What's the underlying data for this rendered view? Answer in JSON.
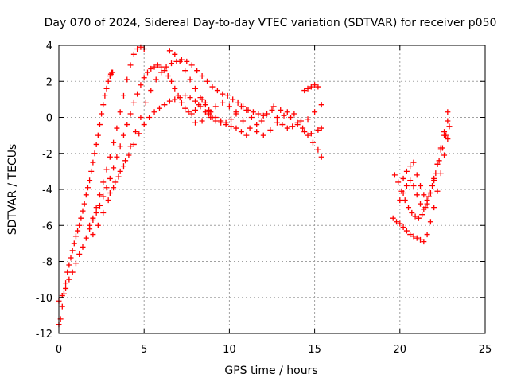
{
  "chart_data": {
    "type": "scatter",
    "title": "Day 070 of 2024, Sidereal Day-to-day VTEC variation (SDTVAR) for receiver p050",
    "xlabel": "GPS time / hours",
    "ylabel": "SDTVAR / TECUs",
    "xlim": [
      0,
      25
    ],
    "ylim": [
      -12,
      4
    ],
    "xticks": [
      0,
      5,
      10,
      15,
      20,
      25
    ],
    "yticks": [
      -12,
      -10,
      -8,
      -6,
      -4,
      -2,
      0,
      2,
      4
    ],
    "x_tick_labels": [
      "0",
      "5",
      "10",
      "15",
      "20",
      "25"
    ],
    "y_tick_labels": [
      "-12",
      "-10",
      "-8",
      "-6",
      "-4",
      "-2",
      "0",
      "2",
      "4"
    ],
    "grid": true,
    "legend": "none",
    "marker": "plus",
    "color": "#ff0000",
    "series": [
      {
        "x": [
          0.0,
          0.1,
          0.2,
          0.3,
          0.4,
          0.5,
          0.6,
          0.7,
          0.8,
          0.9,
          1.0,
          1.1,
          1.2,
          1.3,
          1.4,
          1.5,
          1.6,
          1.7,
          1.8,
          1.9,
          2.0,
          2.1,
          2.2,
          2.3,
          2.4,
          2.5,
          2.6,
          2.7,
          2.8,
          2.9,
          3.0,
          3.05,
          3.1,
          3.15
        ],
        "y": [
          -11.5,
          -11.2,
          -10.5,
          -9.8,
          -9.2,
          -8.6,
          -8.2,
          -7.8,
          -7.4,
          -7.0,
          -6.6,
          -6.3,
          -6.0,
          -5.6,
          -5.2,
          -4.8,
          -4.3,
          -3.9,
          -3.5,
          -3.0,
          -2.5,
          -2.0,
          -1.5,
          -1.0,
          -0.4,
          0.2,
          0.7,
          1.2,
          1.6,
          2.0,
          2.3,
          2.4,
          2.5,
          2.5
        ]
      },
      {
        "x": [
          0.0,
          0.2,
          0.4,
          0.6,
          0.8,
          1.0,
          1.2,
          1.4,
          1.6,
          1.8,
          2.0,
          2.2,
          2.4,
          2.6,
          2.8,
          3.0,
          3.2,
          3.4,
          3.6,
          3.8,
          4.0,
          4.2,
          4.4,
          4.6,
          4.8,
          5.0
        ],
        "y": [
          -10.2,
          -9.9,
          -9.5,
          -9.0,
          -8.6,
          -8.1,
          -7.6,
          -7.2,
          -6.7,
          -6.2,
          -5.6,
          -5.0,
          -4.3,
          -3.6,
          -2.9,
          -2.2,
          -1.4,
          -0.6,
          0.3,
          1.2,
          2.1,
          2.9,
          3.5,
          3.8,
          3.9,
          3.8
        ]
      },
      {
        "x": [
          1.8,
          2.0,
          2.2,
          2.4,
          2.6,
          2.8,
          3.0,
          3.2,
          3.4,
          3.6,
          3.8,
          4.0,
          4.2,
          4.4,
          4.6,
          4.8,
          5.0,
          5.2,
          5.4,
          5.6,
          5.8,
          6.0,
          6.2,
          6.4,
          6.6,
          6.8,
          7.0,
          7.2,
          7.4,
          7.6,
          7.8,
          8.0,
          8.2,
          8.4,
          8.6,
          8.8,
          9.0
        ],
        "y": [
          -6.0,
          -5.7,
          -5.3,
          -4.9,
          -4.4,
          -3.9,
          -3.4,
          -2.8,
          -2.2,
          -1.6,
          -1.0,
          -0.4,
          0.2,
          0.8,
          1.3,
          1.8,
          2.2,
          2.5,
          2.7,
          2.8,
          2.9,
          2.8,
          2.6,
          2.3,
          2.0,
          1.6,
          1.2,
          0.8,
          0.5,
          0.3,
          0.2,
          0.4,
          0.7,
          1.0,
          0.8,
          0.4,
          0.0
        ]
      },
      {
        "x": [
          2.0,
          2.3,
          2.6,
          2.9,
          3.2,
          3.5,
          3.8,
          4.1,
          4.4,
          4.7,
          5.0,
          5.3,
          5.6,
          5.9,
          6.2,
          6.5,
          6.8,
          7.1,
          7.4,
          7.7,
          8.0,
          8.3,
          8.6,
          8.9,
          9.2,
          9.5,
          9.8,
          10.1,
          10.4,
          10.7,
          11.0
        ],
        "y": [
          -6.5,
          -6.0,
          -5.3,
          -4.6,
          -3.9,
          -3.3,
          -2.7,
          -2.1,
          -1.5,
          -0.9,
          -0.4,
          0.0,
          0.3,
          0.5,
          0.7,
          0.9,
          1.0,
          1.1,
          1.2,
          1.1,
          0.9,
          0.6,
          0.3,
          0.0,
          -0.2,
          -0.3,
          -0.4,
          -0.5,
          -0.6,
          -0.8,
          -1.0
        ]
      },
      {
        "x": [
          3.0,
          3.3,
          3.6,
          3.9,
          4.2,
          4.5,
          4.8,
          5.1,
          5.4,
          5.7,
          6.0,
          6.3,
          6.6,
          6.9,
          7.2,
          7.5,
          7.8,
          8.1,
          8.4,
          8.7,
          9.0,
          9.3,
          9.6,
          9.9,
          10.2,
          10.5,
          10.8,
          11.1,
          11.4,
          11.7,
          12.0
        ],
        "y": [
          -4.2,
          -3.6,
          -3.0,
          -2.4,
          -1.6,
          -0.8,
          0.0,
          0.8,
          1.5,
          2.1,
          2.5,
          2.8,
          3.0,
          3.1,
          3.2,
          3.1,
          2.9,
          2.6,
          2.3,
          2.0,
          1.7,
          1.5,
          1.3,
          1.2,
          1.0,
          0.8,
          0.6,
          0.4,
          0.3,
          0.2,
          0.1
        ]
      },
      {
        "x": [
          6.5,
          6.8,
          7.1,
          7.4,
          7.7,
          8.0,
          8.3,
          8.6,
          8.9,
          9.2,
          9.5,
          9.8,
          10.1,
          10.4,
          10.7,
          11.0,
          11.3,
          11.6,
          11.9,
          12.2,
          12.5,
          12.8,
          13.1,
          13.4,
          13.7,
          14.0,
          14.3,
          14.6,
          14.9,
          15.2,
          15.4
        ],
        "y": [
          3.7,
          3.5,
          3.1,
          2.6,
          2.1,
          1.6,
          1.1,
          0.7,
          0.3,
          0.0,
          -0.2,
          -0.3,
          -0.1,
          0.3,
          0.6,
          0.4,
          0.0,
          -0.4,
          -0.2,
          0.2,
          0.4,
          0.0,
          -0.4,
          -0.6,
          -0.5,
          -0.3,
          -0.6,
          -1.0,
          -1.4,
          -1.8,
          -2.2
        ]
      },
      {
        "x": [
          8.0,
          8.4,
          8.8,
          9.2,
          9.6,
          10.0,
          10.4,
          10.8,
          11.2,
          11.6,
          12.0,
          12.4,
          12.8,
          13.2,
          13.6,
          14.0,
          14.4,
          14.8,
          15.2,
          15.4
        ],
        "y": [
          -0.3,
          -0.2,
          0.2,
          0.6,
          0.8,
          0.6,
          0.2,
          -0.2,
          -0.6,
          -0.8,
          -1.0,
          -0.7,
          -0.3,
          0.1,
          0.0,
          -0.4,
          -0.8,
          -0.9,
          -0.7,
          -0.6
        ]
      },
      {
        "x": [
          12.6,
          13.0,
          13.4,
          13.8,
          14.2,
          14.6,
          15.0,
          15.4
        ],
        "y": [
          0.6,
          0.4,
          0.3,
          0.2,
          -0.2,
          -0.1,
          0.3,
          0.7
        ]
      },
      {
        "x": [
          14.4,
          14.6,
          14.8,
          15.0,
          15.2
        ],
        "y": [
          1.5,
          1.6,
          1.7,
          1.8,
          1.7
        ]
      },
      {
        "x": [
          19.6,
          19.8,
          20.0,
          20.2,
          20.4,
          20.6,
          20.8,
          21.0,
          21.2,
          21.4,
          21.6,
          21.8,
          22.0,
          22.2,
          22.4,
          22.6,
          22.8
        ],
        "y": [
          -5.6,
          -5.8,
          -5.9,
          -6.1,
          -6.3,
          -6.5,
          -6.6,
          -6.7,
          -6.8,
          -6.9,
          -6.5,
          -5.8,
          -5.0,
          -4.1,
          -3.1,
          -2.1,
          -1.2
        ]
      },
      {
        "x": [
          19.7,
          19.9,
          20.1,
          20.3,
          20.5,
          20.7,
          20.9,
          21.1,
          21.3,
          21.5,
          21.7,
          21.9,
          22.1,
          22.3,
          22.5,
          22.7,
          22.9
        ],
        "y": [
          -3.2,
          -3.6,
          -4.1,
          -4.6,
          -5.0,
          -5.3,
          -5.5,
          -5.6,
          -5.4,
          -5.0,
          -4.4,
          -3.8,
          -3.1,
          -2.4,
          -1.7,
          -1.0,
          -0.5
        ]
      },
      {
        "x": [
          20.0,
          20.2,
          20.4,
          20.6,
          20.8,
          21.0,
          21.2,
          21.4,
          21.6,
          21.8,
          22.0,
          22.2,
          22.4,
          22.6,
          22.8
        ],
        "y": [
          -4.6,
          -4.2,
          -3.8,
          -3.5,
          -3.8,
          -4.3,
          -4.8,
          -5.1,
          -4.8,
          -4.2,
          -3.4,
          -2.6,
          -1.8,
          -1.0,
          -0.2
        ]
      },
      {
        "x": [
          20.2,
          20.4,
          20.6,
          20.8,
          21.0,
          21.2,
          21.4,
          21.6,
          21.8,
          22.0,
          22.2,
          22.4,
          22.6,
          22.8
        ],
        "y": [
          -3.4,
          -3.0,
          -2.7,
          -2.5,
          -3.2,
          -3.8,
          -4.3,
          -4.6,
          -4.2,
          -3.5,
          -2.6,
          -1.7,
          -0.8,
          0.3
        ]
      }
    ]
  }
}
